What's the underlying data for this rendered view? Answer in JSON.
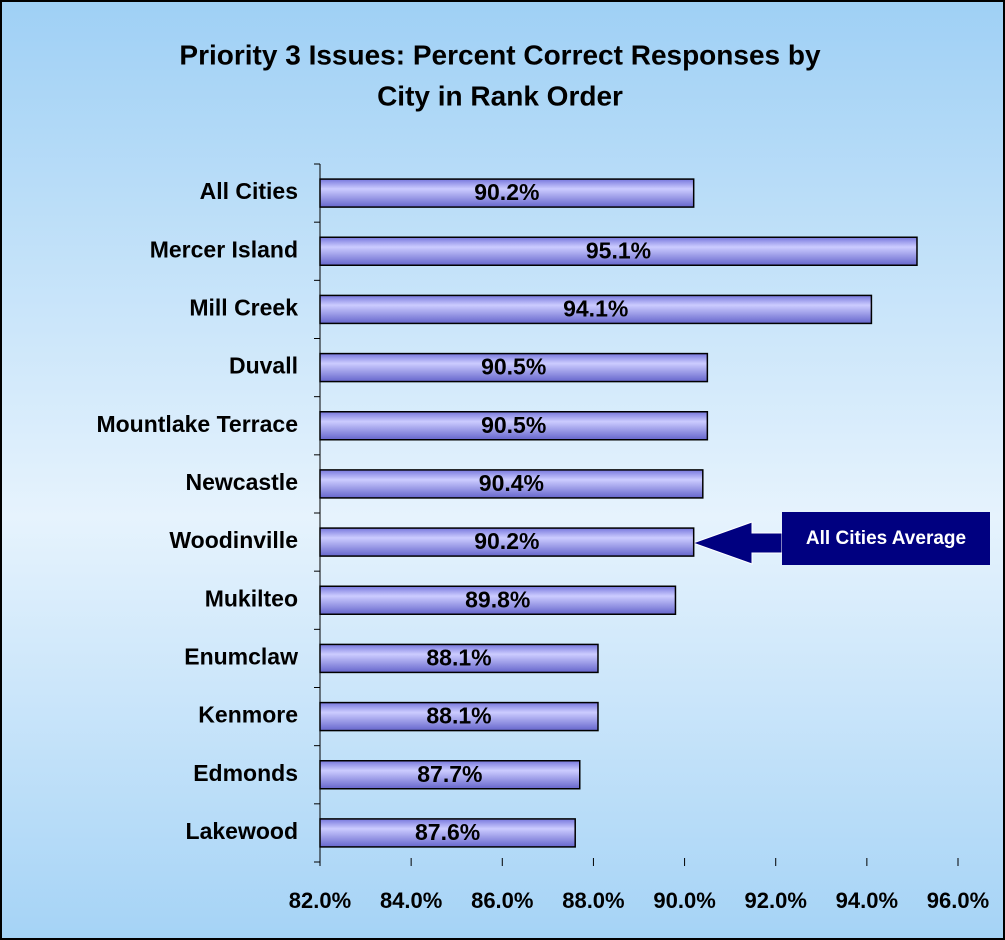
{
  "chart_data": {
    "type": "bar",
    "orientation": "horizontal",
    "title": [
      "Priority 3 Issues:  Percent Correct Responses by",
      "City in Rank Order"
    ],
    "categories": [
      "All Cities",
      "Mercer Island",
      "Mill Creek",
      "Duvall",
      "Mountlake Terrace",
      "Newcastle",
      "Woodinville",
      "Mukilteo",
      "Enumclaw",
      "Kenmore",
      "Edmonds",
      "Lakewood"
    ],
    "values": [
      90.2,
      95.1,
      94.1,
      90.5,
      90.5,
      90.4,
      90.2,
      89.8,
      88.1,
      88.1,
      87.7,
      87.6
    ],
    "value_labels": [
      "90.2%",
      "95.1%",
      "94.1%",
      "90.5%",
      "90.5%",
      "90.4%",
      "90.2%",
      "89.8%",
      "88.1%",
      "88.1%",
      "87.7%",
      "87.6%"
    ],
    "color": "#9999ff",
    "xlim": [
      82,
      96
    ],
    "xticks": [
      {
        "value": 82,
        "label": "82.0%"
      },
      {
        "value": 84,
        "label": "84.0%"
      },
      {
        "value": 86,
        "label": "86.0%"
      },
      {
        "value": 88,
        "label": "88.0%"
      },
      {
        "value": 90,
        "label": "90.0%"
      },
      {
        "value": 92,
        "label": "92.0%"
      },
      {
        "value": 94,
        "label": "94.0%"
      },
      {
        "value": 96,
        "label": "96.0%"
      }
    ],
    "grid": false,
    "annotation": "All Cities Average"
  }
}
